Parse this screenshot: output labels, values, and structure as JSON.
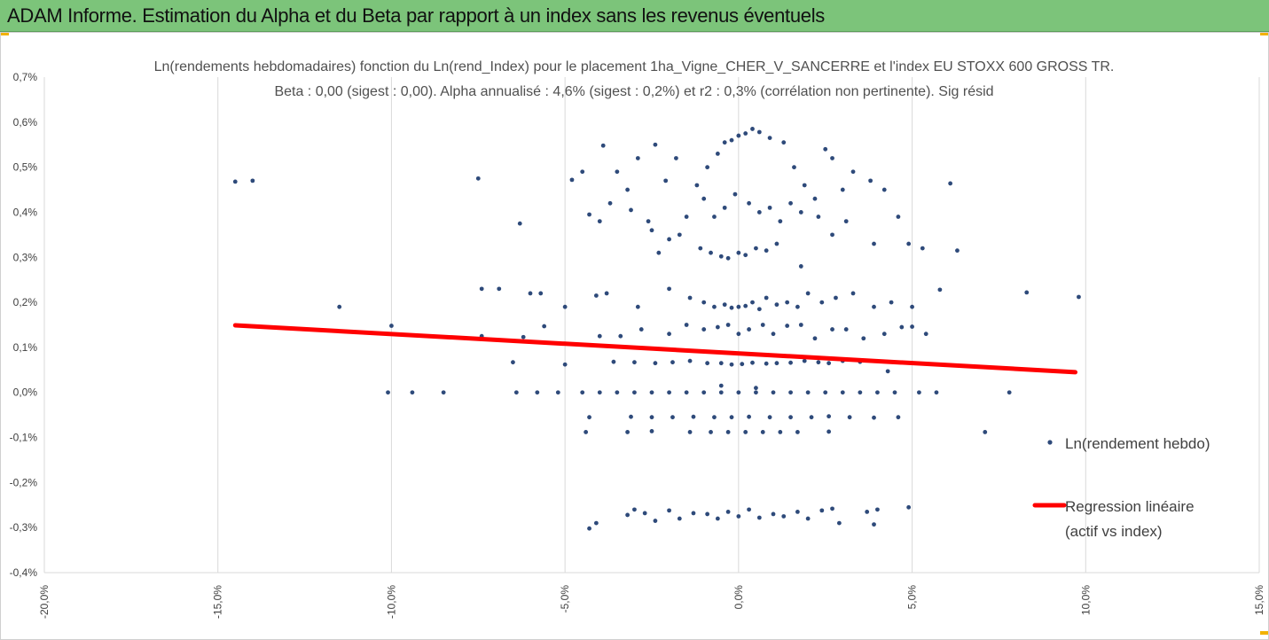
{
  "banner": {
    "title": "ADAM Informe. Estimation du Alpha et du Beta par rapport à un index sans les revenus éventuels"
  },
  "chart_data": {
    "type": "scatter",
    "title_lines": [
      "Ln(rendements hebdomadaires) fonction du Ln(rend_Index) pour le placement 1ha_Vigne_CHER_V_SANCERRE et l'index EU STOXX 600 GROSS TR.",
      "Beta : 0,00 (sigest : 0,00). Alpha annualisé : 4,6% (sigest : 0,2%) et r2 : 0,3% (corrélation non pertinente). Sig résid"
    ],
    "xlim": [
      -20,
      15
    ],
    "ylim": [
      -0.4,
      0.7
    ],
    "x_ticks": [
      -20,
      -15,
      -10,
      -5,
      0,
      5,
      10,
      15
    ],
    "y_ticks": [
      -0.4,
      -0.3,
      -0.2,
      -0.1,
      0.0,
      0.1,
      0.2,
      0.3,
      0.4,
      0.5,
      0.6,
      0.7
    ],
    "x_tick_labels": [
      "-20,0%",
      "-15,0%",
      "-10,0%",
      "-5,0%",
      "0,0%",
      "5,0%",
      "10,0%",
      "15,0%"
    ],
    "y_tick_labels": [
      "-0,4%",
      "-0,3%",
      "-0,2%",
      "-0,1%",
      "0,0%",
      "0,1%",
      "0,2%",
      "0,3%",
      "0,4%",
      "0,5%",
      "0,6%",
      "0,7%"
    ],
    "grid": "vertical",
    "legend_position": "right",
    "series": [
      {
        "name": "Ln(rendement hebdo)",
        "color": "#2e4a7a",
        "points": [
          [
            -14.5,
            0.468
          ],
          [
            -14.0,
            0.47
          ],
          [
            -7.5,
            0.475
          ],
          [
            -6.3,
            0.375
          ],
          [
            -4.5,
            0.49
          ],
          [
            -4.8,
            0.472
          ],
          [
            -3.9,
            0.548
          ],
          [
            -3.5,
            0.49
          ],
          [
            -3.2,
            0.45
          ],
          [
            -2.9,
            0.52
          ],
          [
            -2.4,
            0.55
          ],
          [
            -2.1,
            0.47
          ],
          [
            -1.8,
            0.52
          ],
          [
            -2.6,
            0.38
          ],
          [
            -2.0,
            0.34
          ],
          [
            -1.5,
            0.39
          ],
          [
            -1.2,
            0.46
          ],
          [
            -0.9,
            0.5
          ],
          [
            -0.6,
            0.53
          ],
          [
            -0.4,
            0.555
          ],
          [
            -0.2,
            0.56
          ],
          [
            0.0,
            0.57
          ],
          [
            0.2,
            0.575
          ],
          [
            0.4,
            0.585
          ],
          [
            0.6,
            0.578
          ],
          [
            0.9,
            0.565
          ],
          [
            1.3,
            0.555
          ],
          [
            1.6,
            0.5
          ],
          [
            1.9,
            0.46
          ],
          [
            2.2,
            0.43
          ],
          [
            2.5,
            0.54
          ],
          [
            2.7,
            0.52
          ],
          [
            3.0,
            0.45
          ],
          [
            3.3,
            0.49
          ],
          [
            3.8,
            0.47
          ],
          [
            4.2,
            0.45
          ],
          [
            4.6,
            0.39
          ],
          [
            6.1,
            0.464
          ],
          [
            -4.3,
            0.395
          ],
          [
            -4.0,
            0.38
          ],
          [
            -3.7,
            0.42
          ],
          [
            -3.1,
            0.405
          ],
          [
            -2.5,
            0.36
          ],
          [
            -1.0,
            0.43
          ],
          [
            -0.7,
            0.39
          ],
          [
            -0.4,
            0.41
          ],
          [
            -0.1,
            0.44
          ],
          [
            0.3,
            0.42
          ],
          [
            0.6,
            0.4
          ],
          [
            0.9,
            0.41
          ],
          [
            1.2,
            0.38
          ],
          [
            1.5,
            0.42
          ],
          [
            1.8,
            0.4
          ],
          [
            2.3,
            0.39
          ],
          [
            2.7,
            0.35
          ],
          [
            3.1,
            0.38
          ],
          [
            3.9,
            0.33
          ],
          [
            4.9,
            0.33
          ],
          [
            5.3,
            0.32
          ],
          [
            6.3,
            0.315
          ],
          [
            -1.7,
            0.35
          ],
          [
            -1.1,
            0.32
          ],
          [
            -0.8,
            0.31
          ],
          [
            -0.5,
            0.302
          ],
          [
            -0.3,
            0.298
          ],
          [
            0.0,
            0.31
          ],
          [
            0.2,
            0.305
          ],
          [
            0.5,
            0.32
          ],
          [
            0.8,
            0.315
          ],
          [
            1.1,
            0.33
          ],
          [
            1.8,
            0.28
          ],
          [
            -2.3,
            0.31
          ],
          [
            -7.4,
            0.23
          ],
          [
            -6.9,
            0.23
          ],
          [
            -6.0,
            0.22
          ],
          [
            -5.7,
            0.22
          ],
          [
            -4.1,
            0.215
          ],
          [
            -3.8,
            0.22
          ],
          [
            -2.9,
            0.19
          ],
          [
            -2.0,
            0.23
          ],
          [
            -1.4,
            0.21
          ],
          [
            -1.0,
            0.2
          ],
          [
            -0.7,
            0.19
          ],
          [
            -0.4,
            0.195
          ],
          [
            -0.2,
            0.188
          ],
          [
            0.0,
            0.19
          ],
          [
            0.2,
            0.192
          ],
          [
            0.4,
            0.2
          ],
          [
            0.6,
            0.185
          ],
          [
            0.8,
            0.21
          ],
          [
            1.1,
            0.195
          ],
          [
            1.4,
            0.2
          ],
          [
            1.7,
            0.19
          ],
          [
            2.0,
            0.22
          ],
          [
            2.4,
            0.2
          ],
          [
            2.8,
            0.21
          ],
          [
            3.3,
            0.22
          ],
          [
            3.9,
            0.19
          ],
          [
            4.4,
            0.2
          ],
          [
            5.0,
            0.19
          ],
          [
            5.8,
            0.228
          ],
          [
            8.3,
            0.222
          ],
          [
            9.8,
            0.212
          ],
          [
            -11.5,
            0.19
          ],
          [
            -5.0,
            0.19
          ],
          [
            -10.0,
            0.148
          ],
          [
            -7.4,
            0.125
          ],
          [
            -6.2,
            0.123
          ],
          [
            -5.6,
            0.147
          ],
          [
            -4.0,
            0.125
          ],
          [
            -3.4,
            0.125
          ],
          [
            -2.8,
            0.14
          ],
          [
            -2.0,
            0.13
          ],
          [
            -1.5,
            0.15
          ],
          [
            -1.0,
            0.14
          ],
          [
            -0.6,
            0.145
          ],
          [
            -0.3,
            0.15
          ],
          [
            0.0,
            0.13
          ],
          [
            0.3,
            0.14
          ],
          [
            0.7,
            0.15
          ],
          [
            1.0,
            0.13
          ],
          [
            1.4,
            0.148
          ],
          [
            1.8,
            0.15
          ],
          [
            2.2,
            0.12
          ],
          [
            2.7,
            0.14
          ],
          [
            3.1,
            0.14
          ],
          [
            3.6,
            0.12
          ],
          [
            4.2,
            0.13
          ],
          [
            4.7,
            0.145
          ],
          [
            5.0,
            0.146
          ],
          [
            5.4,
            0.13
          ],
          [
            -6.5,
            0.067
          ],
          [
            -3.6,
            0.068
          ],
          [
            -3.0,
            0.067
          ],
          [
            -2.4,
            0.065
          ],
          [
            -1.9,
            0.067
          ],
          [
            -1.4,
            0.07
          ],
          [
            -0.9,
            0.065
          ],
          [
            -0.5,
            0.065
          ],
          [
            -0.2,
            0.062
          ],
          [
            0.1,
            0.063
          ],
          [
            0.4,
            0.066
          ],
          [
            0.8,
            0.064
          ],
          [
            1.1,
            0.065
          ],
          [
            1.5,
            0.066
          ],
          [
            1.9,
            0.07
          ],
          [
            2.3,
            0.067
          ],
          [
            2.6,
            0.065
          ],
          [
            3.0,
            0.07
          ],
          [
            3.5,
            0.068
          ],
          [
            4.3,
            0.047
          ],
          [
            -5.0,
            0.062
          ],
          [
            -10.1,
            0.0
          ],
          [
            -9.4,
            0.0
          ],
          [
            -8.5,
            0.0
          ],
          [
            -6.4,
            0.0
          ],
          [
            -5.8,
            0.0
          ],
          [
            -5.2,
            0.0
          ],
          [
            -4.5,
            0.0
          ],
          [
            -4.0,
            0.0
          ],
          [
            -3.5,
            0.0
          ],
          [
            -3.0,
            0.0
          ],
          [
            -2.5,
            0.0
          ],
          [
            -2.0,
            0.0
          ],
          [
            -1.5,
            0.0
          ],
          [
            -1.0,
            0.0
          ],
          [
            -0.5,
            0.0
          ],
          [
            0.0,
            0.0
          ],
          [
            0.5,
            0.0
          ],
          [
            1.0,
            0.0
          ],
          [
            1.5,
            0.0
          ],
          [
            2.0,
            0.0
          ],
          [
            2.5,
            0.0
          ],
          [
            3.0,
            0.0
          ],
          [
            3.5,
            0.0
          ],
          [
            4.0,
            0.0
          ],
          [
            4.5,
            0.0
          ],
          [
            5.2,
            0.0
          ],
          [
            5.7,
            0.0
          ],
          [
            7.8,
            0.0
          ],
          [
            0.5,
            0.01
          ],
          [
            -0.5,
            0.015
          ],
          [
            -4.3,
            -0.055
          ],
          [
            -3.1,
            -0.054
          ],
          [
            -2.5,
            -0.055
          ],
          [
            -1.9,
            -0.055
          ],
          [
            -1.3,
            -0.054
          ],
          [
            -0.7,
            -0.055
          ],
          [
            -0.2,
            -0.055
          ],
          [
            0.3,
            -0.054
          ],
          [
            0.9,
            -0.055
          ],
          [
            1.5,
            -0.055
          ],
          [
            2.1,
            -0.055
          ],
          [
            2.6,
            -0.053
          ],
          [
            3.2,
            -0.055
          ],
          [
            3.9,
            -0.056
          ],
          [
            4.6,
            -0.055
          ],
          [
            -4.4,
            -0.088
          ],
          [
            -3.2,
            -0.088
          ],
          [
            -2.5,
            -0.086
          ],
          [
            -1.4,
            -0.088
          ],
          [
            -0.8,
            -0.088
          ],
          [
            -0.3,
            -0.088
          ],
          [
            0.2,
            -0.088
          ],
          [
            0.7,
            -0.088
          ],
          [
            1.2,
            -0.088
          ],
          [
            1.7,
            -0.088
          ],
          [
            2.6,
            -0.087
          ],
          [
            7.1,
            -0.088
          ],
          [
            -4.3,
            -0.302
          ],
          [
            -4.1,
            -0.29
          ],
          [
            -3.2,
            -0.272
          ],
          [
            -3.0,
            -0.26
          ],
          [
            -2.7,
            -0.268
          ],
          [
            -2.4,
            -0.285
          ],
          [
            -2.0,
            -0.262
          ],
          [
            -1.7,
            -0.28
          ],
          [
            -1.3,
            -0.268
          ],
          [
            -0.9,
            -0.27
          ],
          [
            -0.6,
            -0.28
          ],
          [
            -0.3,
            -0.265
          ],
          [
            0.0,
            -0.275
          ],
          [
            0.3,
            -0.26
          ],
          [
            0.6,
            -0.278
          ],
          [
            1.0,
            -0.27
          ],
          [
            1.3,
            -0.275
          ],
          [
            1.7,
            -0.265
          ],
          [
            2.0,
            -0.28
          ],
          [
            2.4,
            -0.262
          ],
          [
            2.7,
            -0.258
          ],
          [
            2.9,
            -0.29
          ],
          [
            3.7,
            -0.265
          ],
          [
            4.0,
            -0.26
          ],
          [
            3.9,
            -0.293
          ],
          [
            4.9,
            -0.255
          ]
        ]
      },
      {
        "name": "Regression linéaire (actif vs index)",
        "legend_lines": [
          "Regression linéaire",
          "(actif vs index)"
        ],
        "type": "line",
        "color": "#ff0000",
        "points": [
          [
            -14.5,
            0.149
          ],
          [
            9.7,
            0.045
          ]
        ]
      }
    ]
  }
}
